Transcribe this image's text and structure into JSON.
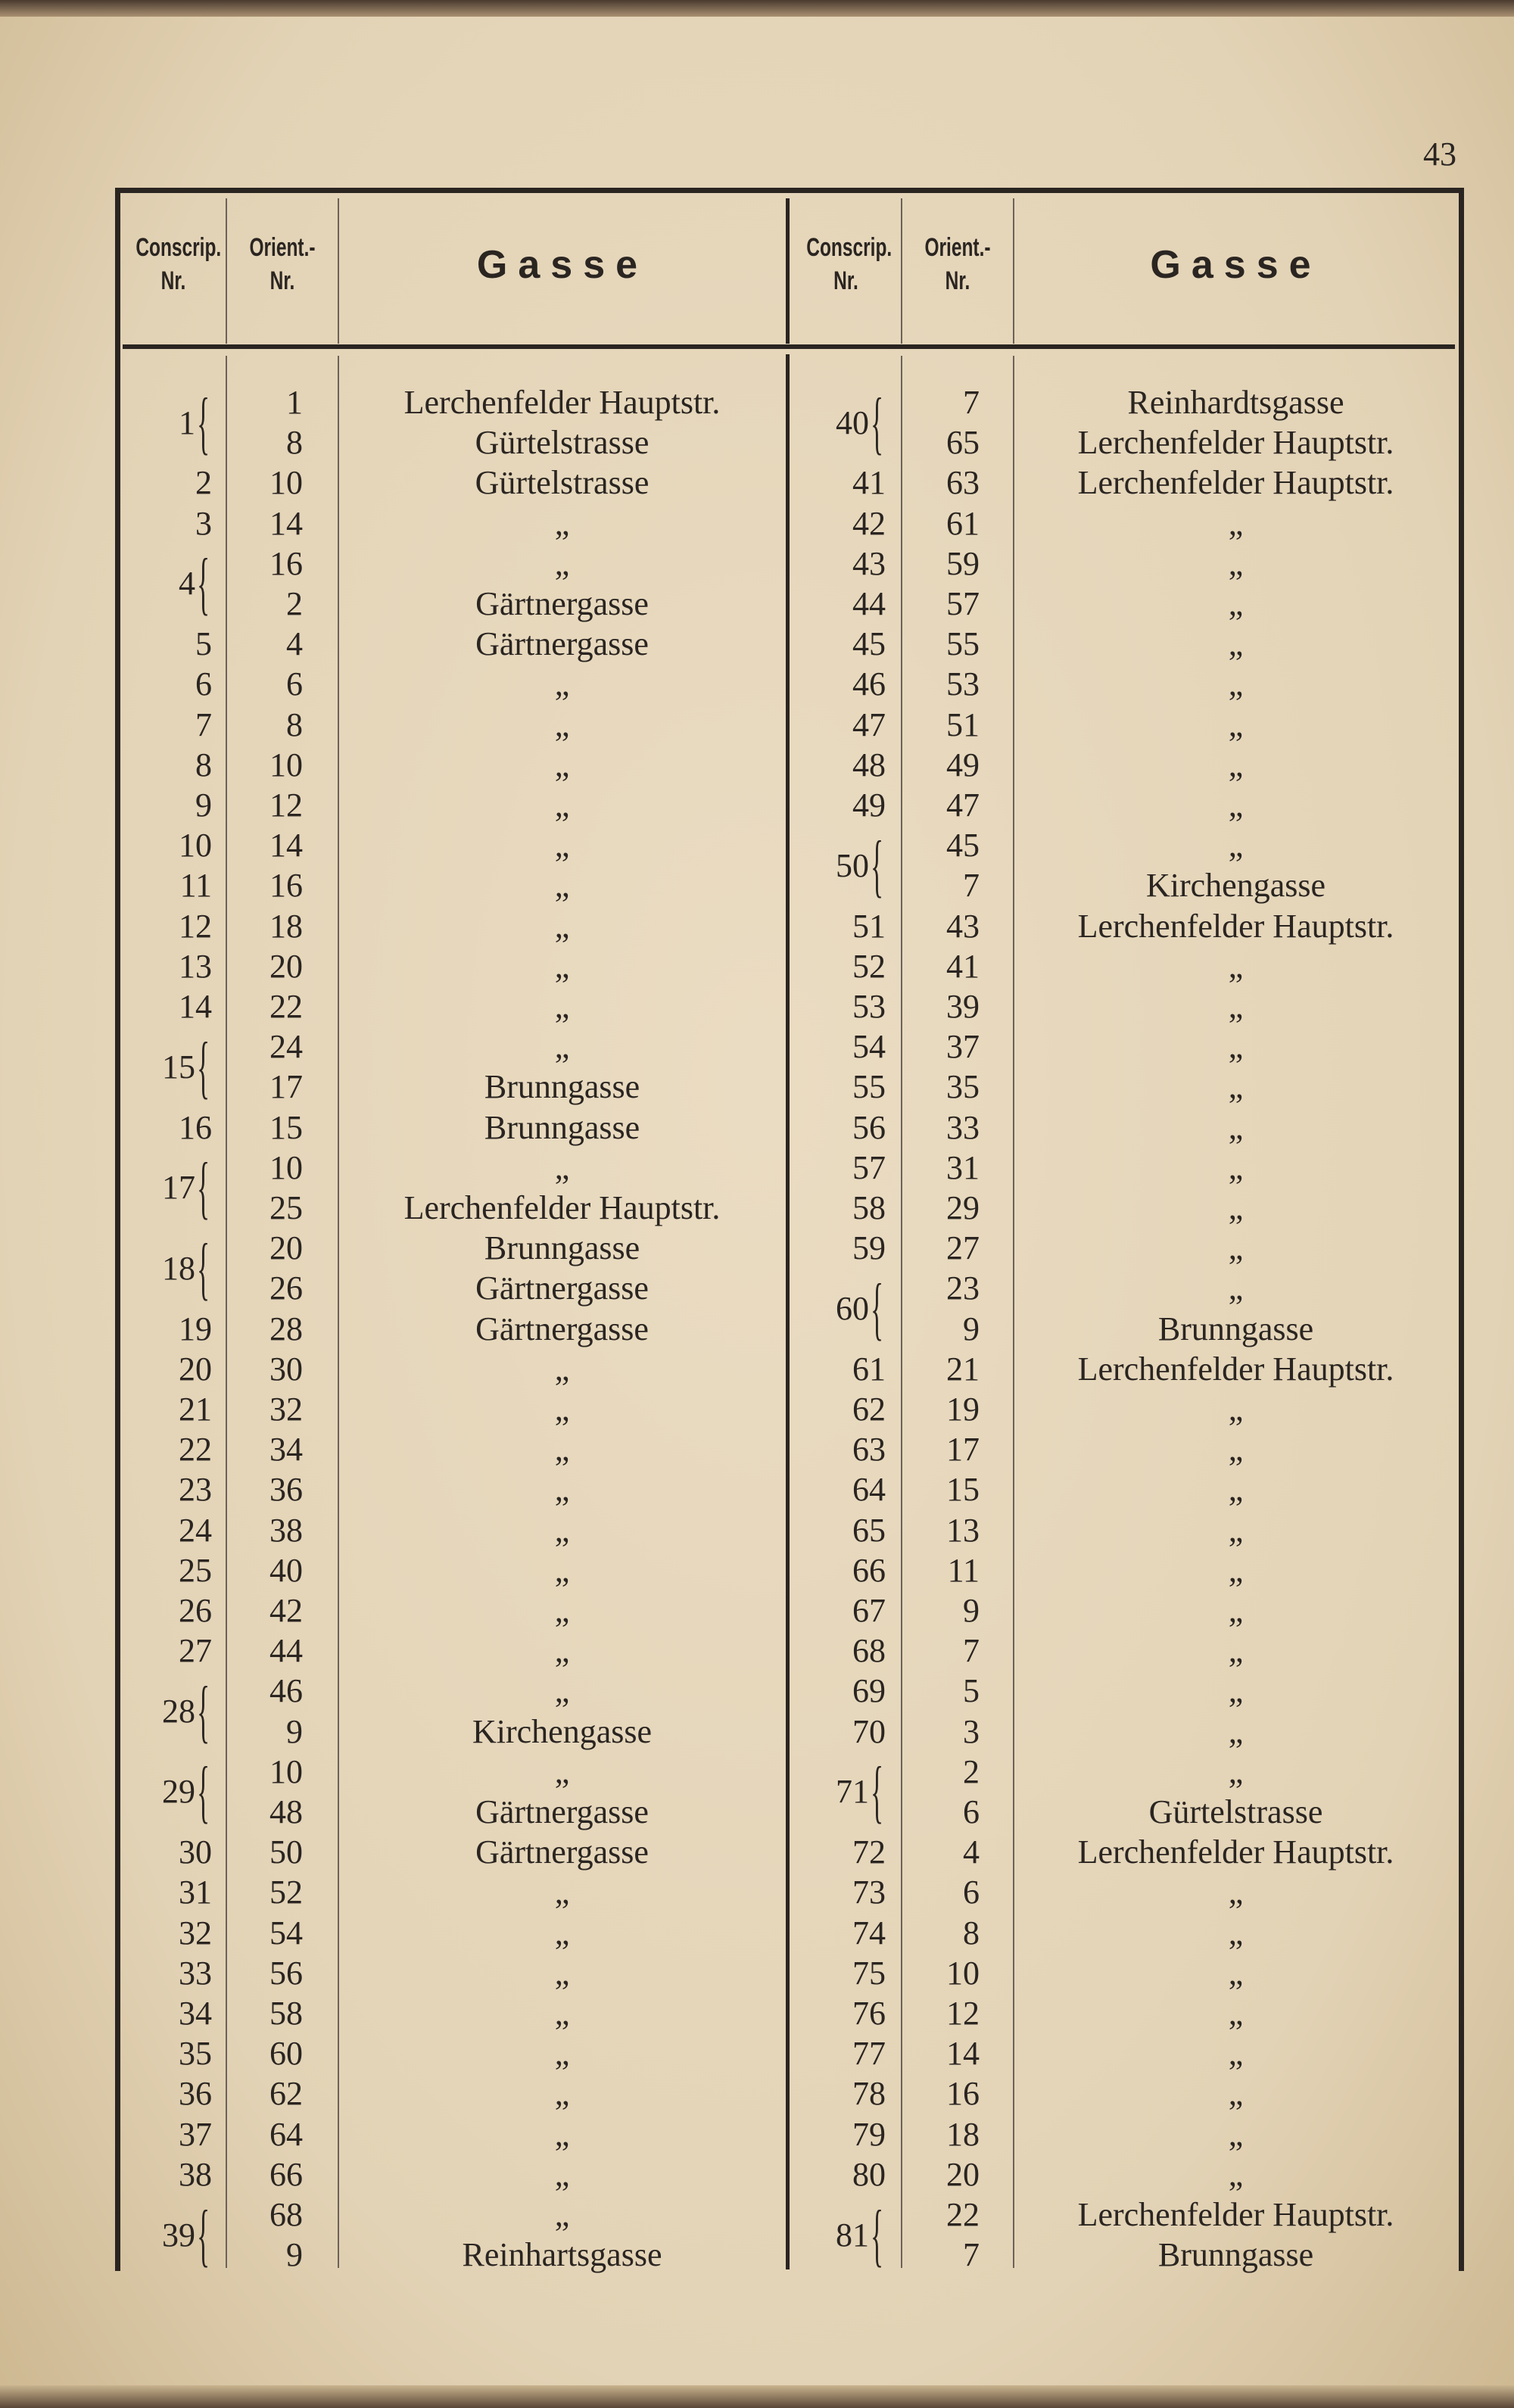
{
  "page_number": "43",
  "headers": {
    "conscrip": "Conscrip.",
    "conscrip_nr": "Nr.",
    "orient": "Orient.-",
    "orient_nr": "Nr.",
    "gasse": "Gasse"
  },
  "ditto": "„",
  "left": [
    {
      "nr": "1",
      "rows": [
        {
          "orient": "1",
          "gasse": "Lerchenfelder Hauptstr."
        },
        {
          "orient": "8",
          "gasse": "Gürtelstrasse"
        }
      ]
    },
    {
      "nr": "2",
      "rows": [
        {
          "orient": "10",
          "gasse": "Gürtelstrasse"
        }
      ]
    },
    {
      "nr": "3",
      "rows": [
        {
          "orient": "14",
          "gasse": "„"
        }
      ]
    },
    {
      "nr": "4",
      "rows": [
        {
          "orient": "16",
          "gasse": "„"
        },
        {
          "orient": "2",
          "gasse": "Gärtnergasse"
        }
      ]
    },
    {
      "nr": "5",
      "rows": [
        {
          "orient": "4",
          "gasse": "Gärtnergasse"
        }
      ]
    },
    {
      "nr": "6",
      "rows": [
        {
          "orient": "6",
          "gasse": "„"
        }
      ]
    },
    {
      "nr": "7",
      "rows": [
        {
          "orient": "8",
          "gasse": "„"
        }
      ]
    },
    {
      "nr": "8",
      "rows": [
        {
          "orient": "10",
          "gasse": "„"
        }
      ]
    },
    {
      "nr": "9",
      "rows": [
        {
          "orient": "12",
          "gasse": "„"
        }
      ]
    },
    {
      "nr": "10",
      "rows": [
        {
          "orient": "14",
          "gasse": "„"
        }
      ]
    },
    {
      "nr": "11",
      "rows": [
        {
          "orient": "16",
          "gasse": "„"
        }
      ]
    },
    {
      "nr": "12",
      "rows": [
        {
          "orient": "18",
          "gasse": "„"
        }
      ]
    },
    {
      "nr": "13",
      "rows": [
        {
          "orient": "20",
          "gasse": "„"
        }
      ]
    },
    {
      "nr": "14",
      "rows": [
        {
          "orient": "22",
          "gasse": "„"
        }
      ]
    },
    {
      "nr": "15",
      "rows": [
        {
          "orient": "24",
          "gasse": "„"
        },
        {
          "orient": "17",
          "gasse": "Brunngasse"
        }
      ]
    },
    {
      "nr": "16",
      "rows": [
        {
          "orient": "15",
          "gasse": "Brunngasse"
        }
      ]
    },
    {
      "nr": "17",
      "rows": [
        {
          "orient": "10",
          "gasse": "„"
        },
        {
          "orient": "25",
          "gasse": "Lerchenfelder Hauptstr."
        }
      ]
    },
    {
      "nr": "18",
      "rows": [
        {
          "orient": "20",
          "gasse": "Brunngasse"
        },
        {
          "orient": "26",
          "gasse": "Gärtnergasse"
        }
      ]
    },
    {
      "nr": "19",
      "rows": [
        {
          "orient": "28",
          "gasse": "Gärtnergasse"
        }
      ]
    },
    {
      "nr": "20",
      "rows": [
        {
          "orient": "30",
          "gasse": "„"
        }
      ]
    },
    {
      "nr": "21",
      "rows": [
        {
          "orient": "32",
          "gasse": "„"
        }
      ]
    },
    {
      "nr": "22",
      "rows": [
        {
          "orient": "34",
          "gasse": "„"
        }
      ]
    },
    {
      "nr": "23",
      "rows": [
        {
          "orient": "36",
          "gasse": "„"
        }
      ]
    },
    {
      "nr": "24",
      "rows": [
        {
          "orient": "38",
          "gasse": "„"
        }
      ]
    },
    {
      "nr": "25",
      "rows": [
        {
          "orient": "40",
          "gasse": "„"
        }
      ]
    },
    {
      "nr": "26",
      "rows": [
        {
          "orient": "42",
          "gasse": "„"
        }
      ]
    },
    {
      "nr": "27",
      "rows": [
        {
          "orient": "44",
          "gasse": "„"
        }
      ]
    },
    {
      "nr": "28",
      "rows": [
        {
          "orient": "46",
          "gasse": "„"
        },
        {
          "orient": "9",
          "gasse": "Kirchengasse"
        }
      ]
    },
    {
      "nr": "29",
      "rows": [
        {
          "orient": "10",
          "gasse": "„"
        },
        {
          "orient": "48",
          "gasse": "Gärtnergasse"
        }
      ]
    },
    {
      "nr": "30",
      "rows": [
        {
          "orient": "50",
          "gasse": "Gärtnergasse"
        }
      ]
    },
    {
      "nr": "31",
      "rows": [
        {
          "orient": "52",
          "gasse": "„"
        }
      ]
    },
    {
      "nr": "32",
      "rows": [
        {
          "orient": "54",
          "gasse": "„"
        }
      ]
    },
    {
      "nr": "33",
      "rows": [
        {
          "orient": "56",
          "gasse": "„"
        }
      ]
    },
    {
      "nr": "34",
      "rows": [
        {
          "orient": "58",
          "gasse": "„"
        }
      ]
    },
    {
      "nr": "35",
      "rows": [
        {
          "orient": "60",
          "gasse": "„"
        }
      ]
    },
    {
      "nr": "36",
      "rows": [
        {
          "orient": "62",
          "gasse": "„"
        }
      ]
    },
    {
      "nr": "37",
      "rows": [
        {
          "orient": "64",
          "gasse": "„"
        }
      ]
    },
    {
      "nr": "38",
      "rows": [
        {
          "orient": "66",
          "gasse": "„"
        }
      ]
    },
    {
      "nr": "39",
      "rows": [
        {
          "orient": "68",
          "gasse": "„"
        },
        {
          "orient": "9",
          "gasse": "Reinhartsgasse"
        }
      ]
    }
  ],
  "right": [
    {
      "nr": "40",
      "rows": [
        {
          "orient": "7",
          "gasse": "Reinhardtsgasse"
        },
        {
          "orient": "65",
          "gasse": "Lerchenfelder Hauptstr."
        }
      ]
    },
    {
      "nr": "41",
      "rows": [
        {
          "orient": "63",
          "gasse": "Lerchenfelder Hauptstr."
        }
      ]
    },
    {
      "nr": "42",
      "rows": [
        {
          "orient": "61",
          "gasse": "„"
        }
      ]
    },
    {
      "nr": "43",
      "rows": [
        {
          "orient": "59",
          "gasse": "„"
        }
      ]
    },
    {
      "nr": "44",
      "rows": [
        {
          "orient": "57",
          "gasse": "„"
        }
      ]
    },
    {
      "nr": "45",
      "rows": [
        {
          "orient": "55",
          "gasse": "„"
        }
      ]
    },
    {
      "nr": "46",
      "rows": [
        {
          "orient": "53",
          "gasse": "„"
        }
      ]
    },
    {
      "nr": "47",
      "rows": [
        {
          "orient": "51",
          "gasse": "„"
        }
      ]
    },
    {
      "nr": "48",
      "rows": [
        {
          "orient": "49",
          "gasse": "„"
        }
      ]
    },
    {
      "nr": "49",
      "rows": [
        {
          "orient": "47",
          "gasse": "„"
        }
      ]
    },
    {
      "nr": "50",
      "rows": [
        {
          "orient": "45",
          "gasse": "„"
        },
        {
          "orient": "7",
          "gasse": "Kirchengasse"
        }
      ]
    },
    {
      "nr": "51",
      "rows": [
        {
          "orient": "43",
          "gasse": "Lerchenfelder Hauptstr."
        }
      ]
    },
    {
      "nr": "52",
      "rows": [
        {
          "orient": "41",
          "gasse": "„"
        }
      ]
    },
    {
      "nr": "53",
      "rows": [
        {
          "orient": "39",
          "gasse": "„"
        }
      ]
    },
    {
      "nr": "54",
      "rows": [
        {
          "orient": "37",
          "gasse": "„"
        }
      ]
    },
    {
      "nr": "55",
      "rows": [
        {
          "orient": "35",
          "gasse": "„"
        }
      ]
    },
    {
      "nr": "56",
      "rows": [
        {
          "orient": "33",
          "gasse": "„"
        }
      ]
    },
    {
      "nr": "57",
      "rows": [
        {
          "orient": "31",
          "gasse": "„"
        }
      ]
    },
    {
      "nr": "58",
      "rows": [
        {
          "orient": "29",
          "gasse": "„"
        }
      ]
    },
    {
      "nr": "59",
      "rows": [
        {
          "orient": "27",
          "gasse": "„"
        }
      ]
    },
    {
      "nr": "60",
      "rows": [
        {
          "orient": "23",
          "gasse": "„"
        },
        {
          "orient": "9",
          "gasse": "Brunngasse"
        }
      ]
    },
    {
      "nr": "61",
      "rows": [
        {
          "orient": "21",
          "gasse": "Lerchenfelder Hauptstr."
        }
      ]
    },
    {
      "nr": "62",
      "rows": [
        {
          "orient": "19",
          "gasse": "„"
        }
      ]
    },
    {
      "nr": "63",
      "rows": [
        {
          "orient": "17",
          "gasse": "„"
        }
      ]
    },
    {
      "nr": "64",
      "rows": [
        {
          "orient": "15",
          "gasse": "„"
        }
      ]
    },
    {
      "nr": "65",
      "rows": [
        {
          "orient": "13",
          "gasse": "„"
        }
      ]
    },
    {
      "nr": "66",
      "rows": [
        {
          "orient": "11",
          "gasse": "„"
        }
      ]
    },
    {
      "nr": "67",
      "rows": [
        {
          "orient": "9",
          "gasse": "„"
        }
      ]
    },
    {
      "nr": "68",
      "rows": [
        {
          "orient": "7",
          "gasse": "„"
        }
      ]
    },
    {
      "nr": "69",
      "rows": [
        {
          "orient": "5",
          "gasse": "„"
        }
      ]
    },
    {
      "nr": "70",
      "rows": [
        {
          "orient": "3",
          "gasse": "„"
        }
      ]
    },
    {
      "nr": "71",
      "rows": [
        {
          "orient": "2",
          "gasse": "„"
        },
        {
          "orient": "6",
          "gasse": "Gürtelstrasse"
        }
      ]
    },
    {
      "nr": "72",
      "rows": [
        {
          "orient": "4",
          "gasse": "Lerchenfelder Hauptstr."
        }
      ]
    },
    {
      "nr": "73",
      "rows": [
        {
          "orient": "6",
          "gasse": "„"
        }
      ]
    },
    {
      "nr": "74",
      "rows": [
        {
          "orient": "8",
          "gasse": "„"
        }
      ]
    },
    {
      "nr": "75",
      "rows": [
        {
          "orient": "10",
          "gasse": "„"
        }
      ]
    },
    {
      "nr": "76",
      "rows": [
        {
          "orient": "12",
          "gasse": "„"
        }
      ]
    },
    {
      "nr": "77",
      "rows": [
        {
          "orient": "14",
          "gasse": "„"
        }
      ]
    },
    {
      "nr": "78",
      "rows": [
        {
          "orient": "16",
          "gasse": "„"
        }
      ]
    },
    {
      "nr": "79",
      "rows": [
        {
          "orient": "18",
          "gasse": "„"
        }
      ]
    },
    {
      "nr": "80",
      "rows": [
        {
          "orient": "20",
          "gasse": "„"
        }
      ]
    },
    {
      "nr": "81",
      "rows": [
        {
          "orient": "22",
          "gasse": "Lerchenfelder Hauptstr."
        },
        {
          "orient": "7",
          "gasse": "Brunngasse"
        }
      ]
    }
  ]
}
